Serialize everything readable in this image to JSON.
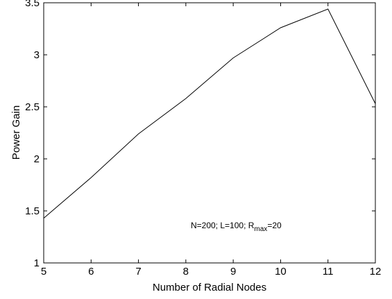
{
  "chart_data": {
    "type": "line",
    "title": "",
    "xlabel": "Number of Radial Nodes",
    "ylabel": "Power Gain",
    "xlim": [
      5,
      12
    ],
    "ylim": [
      1,
      3.5
    ],
    "grid": false,
    "x": [
      5,
      6,
      7,
      8,
      9,
      10,
      11,
      12
    ],
    "series": [
      {
        "values": [
          1.43,
          1.82,
          2.24,
          2.58,
          2.97,
          3.26,
          3.44,
          2.53
        ]
      }
    ],
    "xticks": [
      "5",
      "6",
      "7",
      "8",
      "9",
      "10",
      "11",
      "12"
    ],
    "yticks": [
      "1",
      "1.5",
      "2",
      "2.5",
      "3",
      "3.5"
    ],
    "annotation": {
      "prefix": "N=200; L=100; R",
      "subscript": "max",
      "suffix": "=20"
    }
  }
}
